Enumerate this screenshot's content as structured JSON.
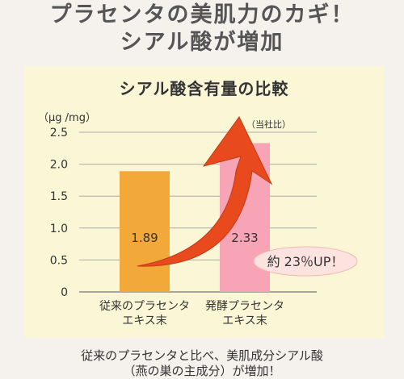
{
  "headline": {
    "line1": "プラセンタの美肌力のカギ！",
    "line2": "シアル酸が増加"
  },
  "footer": {
    "line1": "従来のプラセンタと比べ、美肌成分シアル酸",
    "line2": "（燕の巣の主成分）が増加！"
  },
  "chart_data": {
    "type": "bar",
    "title": "シアル酸含有量の比較",
    "ylabel": "（μg /mg）",
    "note": "（当社比）",
    "ylim": [
      0,
      2.5
    ],
    "yticks": [
      "0",
      "0.5",
      "1.0",
      "1.5",
      "2.0",
      "2.5"
    ],
    "categories": [
      [
        "従来のプラセンタ",
        "エキス末"
      ],
      [
        "発酵プラセンタ",
        "エキス末"
      ]
    ],
    "values": [
      1.89,
      2.33
    ],
    "value_labels": [
      "1.89",
      "2.33"
    ],
    "bar_colors": [
      "#f3a93a",
      "#f7a5b6"
    ],
    "annotation": "約 23％UP！",
    "arrow_color": "#e84a1e"
  }
}
